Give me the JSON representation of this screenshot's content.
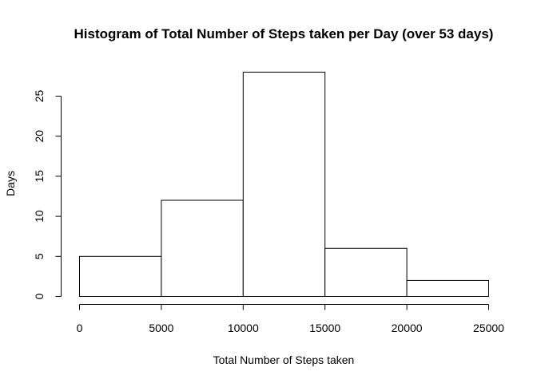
{
  "chart_data": {
    "type": "bar",
    "title": "Histogram of Total Number of Steps taken per Day (over 53 days)",
    "xlabel": "Total Number of Steps taken",
    "ylabel": "Days",
    "bins": [
      {
        "from": 0,
        "to": 5000,
        "value": 5
      },
      {
        "from": 5000,
        "to": 10000,
        "value": 12
      },
      {
        "from": 10000,
        "to": 15000,
        "value": 28
      },
      {
        "from": 15000,
        "to": 20000,
        "value": 6
      },
      {
        "from": 20000,
        "to": 25000,
        "value": 2
      }
    ],
    "xlim": [
      0,
      25000
    ],
    "ylim": [
      0,
      28
    ],
    "x_ticks": [
      "0",
      "5000",
      "10000",
      "15000",
      "20000",
      "25000"
    ],
    "y_ticks": [
      "0",
      "5",
      "10",
      "15",
      "20",
      "25"
    ],
    "grid": false,
    "legend": "none",
    "bar_fill": "#ffffff",
    "bar_stroke": "#000000"
  }
}
